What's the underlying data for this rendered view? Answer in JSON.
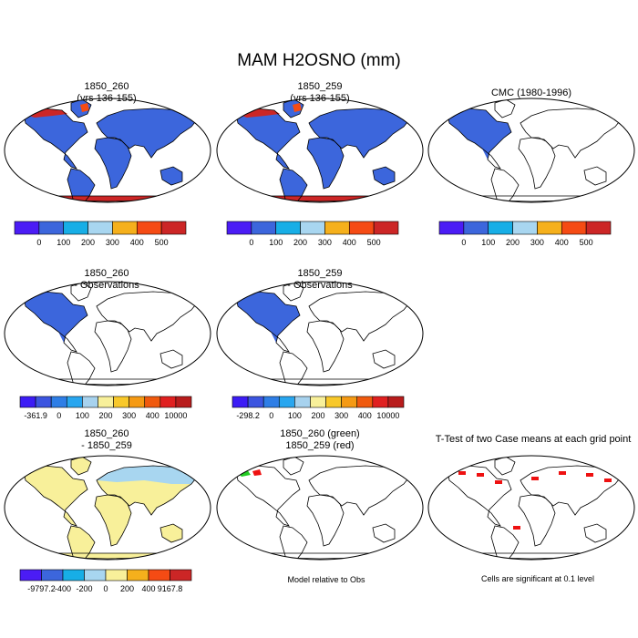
{
  "main_title": "MAM H2OSNO (mm)",
  "panels": [
    {
      "id": "p1",
      "title_line1": "1850_260",
      "title_line2": "(yrs 136-155)"
    },
    {
      "id": "p2",
      "title_line1": "1850_259",
      "title_line2": "(yrs 136-155)"
    },
    {
      "id": "p3",
      "title_line1": "CMC (1980-1996)",
      "title_line2": ""
    },
    {
      "id": "p4",
      "title_line1": "1850_260",
      "title_line2": "- Observations"
    },
    {
      "id": "p5",
      "title_line1": "1850_259",
      "title_line2": "- Observations"
    },
    {
      "id": "p6",
      "title_line1": "1850_260",
      "title_line2": "- 1850_259"
    },
    {
      "id": "p7",
      "title_line1": "1850_260 (green)",
      "title_line2": "1850_259 (red)"
    },
    {
      "id": "p8",
      "title_line1": "T-Test of two Case means at each grid point",
      "title_line2": ""
    }
  ],
  "colorbars": {
    "abs": {
      "colors": [
        "#4b1cf5",
        "#3c66dc",
        "#17aee6",
        "#a8d6f0",
        "#f5b01c",
        "#f54b14",
        "#cc2626"
      ],
      "labels": [
        "0",
        "100",
        "200",
        "300",
        "400",
        "500"
      ]
    },
    "diff1": {
      "colors": [
        "#3c1cf5",
        "#3c55e0",
        "#2e7ee6",
        "#28a6ef",
        "#a7d2ee",
        "#f8f09a",
        "#f8c82a",
        "#f59a14",
        "#f05a0e",
        "#e02020",
        "#b81c1c"
      ],
      "labels": [
        "-361.9",
        "0",
        "100",
        "200",
        "300",
        "400",
        "10000"
      ]
    },
    "diff2": {
      "colors": [
        "#3c1cf5",
        "#3c55e0",
        "#2e7ee6",
        "#28a6ef",
        "#a7d2ee",
        "#f8f09a",
        "#f8c82a",
        "#f59a14",
        "#f05a0e",
        "#e02020",
        "#b81c1c"
      ],
      "labels": [
        "-298.2",
        "0",
        "100",
        "200",
        "300",
        "400",
        "10000"
      ]
    },
    "diff3": {
      "colors": [
        "#4b1cf5",
        "#3c66dc",
        "#17aee6",
        "#a8d6f0",
        "#f8f09a",
        "#f5b01c",
        "#f54b14",
        "#cc2626"
      ],
      "labels": [
        "-9797.2",
        "-400",
        "-200",
        "0",
        "200",
        "400",
        "9167.8"
      ]
    }
  },
  "notes": {
    "model_relative": "Model relative to Obs",
    "significance": "Cells are significant at 0.1 level"
  },
  "colors": {
    "snow_base": "#3c66dc",
    "snow_high": "#cc2626",
    "diff_pos": "#f8f09a",
    "diff_light": "#a8d6f0",
    "green": "#22cc22",
    "red": "#ee1111"
  }
}
